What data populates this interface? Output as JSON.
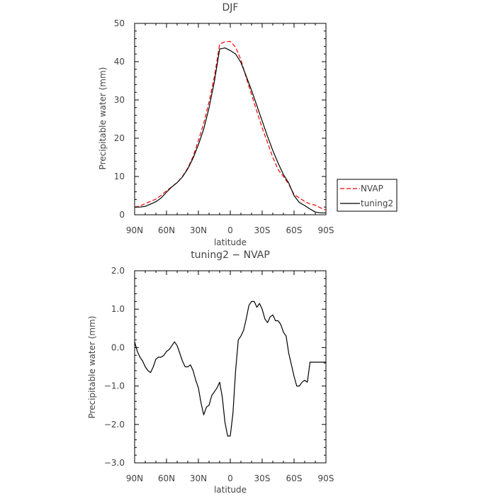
{
  "chart_data": [
    {
      "type": "line",
      "title": "DJF",
      "xlabel": "latitude",
      "ylabel": "Precipitable water (mm)",
      "xlim": [
        90,
        -90
      ],
      "ylim": [
        0,
        50
      ],
      "x_ticks": [
        90,
        60,
        30,
        0,
        -30,
        -60,
        -90
      ],
      "x_tick_labels": [
        "90N",
        "60N",
        "30N",
        "0",
        "30S",
        "60S",
        "90S"
      ],
      "y_ticks": [
        0,
        10,
        20,
        30,
        40,
        50
      ],
      "y_tick_labels": [
        "0",
        "10",
        "20",
        "30",
        "40",
        "50"
      ],
      "legend": "right",
      "series": [
        {
          "name": "NVAP",
          "color": "#ff0000",
          "style": "dashed",
          "x": [
            90,
            85,
            80,
            75,
            70,
            65,
            60,
            55,
            50,
            45,
            40,
            35,
            30,
            25,
            20,
            15,
            10,
            5,
            0,
            -5,
            -10,
            -15,
            -20,
            -25,
            -30,
            -35,
            -40,
            -45,
            -50,
            -55,
            -60,
            -65,
            -70,
            -75,
            -80,
            -85,
            -90
          ],
          "values": [
            2.0,
            2.3,
            2.9,
            3.5,
            4.1,
            5.1,
            6.3,
            7.3,
            8.4,
            10.0,
            12.2,
            15.2,
            19.4,
            23.9,
            29.5,
            36.0,
            44.6,
            45.2,
            45.3,
            43.8,
            40.5,
            35.8,
            31.4,
            27.0,
            22.7,
            18.9,
            15.0,
            11.8,
            10.0,
            8.0,
            5.3,
            4.4,
            3.5,
            2.8,
            2.5,
            1.8,
            1.2
          ]
        },
        {
          "name": "tuning2",
          "color": "#000000",
          "style": "solid",
          "x": [
            90,
            85,
            80,
            75,
            70,
            65,
            60,
            55,
            50,
            45,
            40,
            35,
            30,
            25,
            20,
            15,
            10,
            5,
            0,
            -5,
            -10,
            -15,
            -20,
            -25,
            -30,
            -35,
            -40,
            -45,
            -50,
            -55,
            -60,
            -65,
            -70,
            -75,
            -80,
            -85,
            -90
          ],
          "values": [
            2.0,
            2.0,
            2.2,
            2.8,
            3.4,
            4.4,
            5.9,
            7.3,
            8.4,
            9.9,
            12.0,
            14.8,
            18.3,
            22.4,
            27.9,
            34.8,
            43.3,
            43.6,
            42.9,
            42.0,
            39.8,
            36.2,
            32.5,
            28.5,
            24.5,
            20.5,
            16.8,
            13.5,
            10.5,
            8.3,
            5.0,
            3.2,
            2.4,
            1.5,
            0.7,
            0.5,
            0.5
          ]
        }
      ]
    },
    {
      "type": "line",
      "title": "tuning2 − NVAP",
      "xlabel": "latitude",
      "ylabel": "Precipitable water (mm)",
      "xlim": [
        90,
        -90
      ],
      "ylim": [
        -3,
        2
      ],
      "x_ticks": [
        90,
        60,
        30,
        0,
        -30,
        -60,
        -90
      ],
      "x_tick_labels": [
        "90N",
        "60N",
        "30N",
        "0",
        "30S",
        "60S",
        "90S"
      ],
      "y_ticks": [
        2,
        1,
        0,
        -1,
        -2,
        -3
      ],
      "y_tick_labels": [
        "2.0",
        "1.0",
        "0.0",
        "−1.0",
        "−2.0",
        "−3.0"
      ],
      "series": [
        {
          "name": "tuning2 − NVAP",
          "color": "#000000",
          "style": "solid",
          "x": [
            90,
            87.5,
            85,
            82.5,
            80,
            77.5,
            75,
            72.5,
            70,
            67.5,
            65,
            62.5,
            60,
            57.5,
            55,
            52.5,
            50,
            47.5,
            45,
            42.5,
            40,
            37.5,
            35,
            32.5,
            30,
            27.5,
            25,
            22.5,
            20,
            17.5,
            15,
            12.5,
            10,
            7.5,
            5,
            2.5,
            0,
            -2.5,
            -5,
            -7.5,
            -10,
            -12.5,
            -15,
            -17.5,
            -20,
            -22.5,
            -25,
            -27.5,
            -30,
            -32.5,
            -35,
            -37.5,
            -40,
            -42.5,
            -45,
            -47.5,
            -50,
            -52.5,
            -55,
            -57.5,
            -60,
            -62.5,
            -65,
            -67.5,
            -70,
            -72.5,
            -75,
            -77.5,
            -80,
            -82.5,
            -85,
            -87.5,
            -90
          ],
          "values": [
            0.15,
            -0.1,
            -0.25,
            -0.35,
            -0.5,
            -0.6,
            -0.65,
            -0.5,
            -0.3,
            -0.25,
            -0.25,
            -0.2,
            -0.1,
            -0.05,
            0.05,
            0.15,
            0.05,
            -0.15,
            -0.35,
            -0.5,
            -0.5,
            -0.45,
            -0.6,
            -0.85,
            -1.05,
            -1.45,
            -1.75,
            -1.55,
            -1.5,
            -1.25,
            -1.15,
            -1.05,
            -0.9,
            -1.3,
            -1.95,
            -2.3,
            -2.3,
            -1.7,
            -0.6,
            0.2,
            0.3,
            0.45,
            0.75,
            1.1,
            1.2,
            1.2,
            1.05,
            1.15,
            1.0,
            0.75,
            0.65,
            0.8,
            0.85,
            0.7,
            0.7,
            0.6,
            0.4,
            0.3,
            -0.15,
            -0.45,
            -0.75,
            -1.0,
            -1.0,
            -0.9,
            -0.85,
            -0.9,
            -0.38,
            -0.38,
            -0.38,
            -0.38,
            -0.38,
            -0.38,
            -0.38
          ]
        }
      ]
    }
  ]
}
